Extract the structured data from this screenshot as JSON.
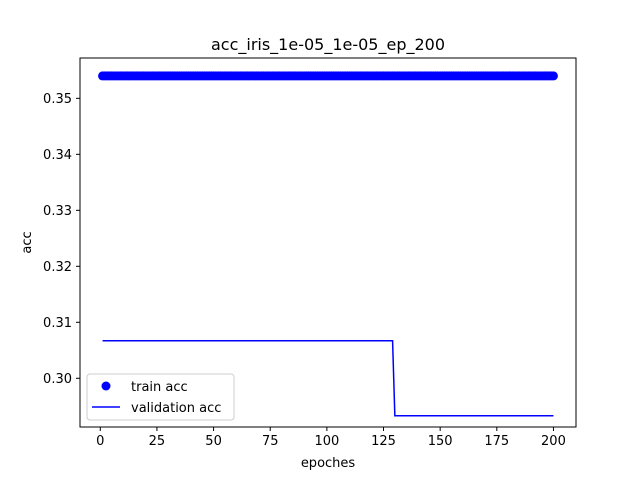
{
  "chart_data": {
    "type": "line",
    "title": "acc_iris_1e-05_1e-05_ep_200",
    "xlabel": "epoches",
    "ylabel": "acc",
    "xlim": [
      -8.95,
      209.95
    ],
    "ylim": [
      0.2913,
      0.3572
    ],
    "xticks": [
      0,
      25,
      50,
      75,
      100,
      125,
      150,
      175,
      200
    ],
    "yticks": [
      0.3,
      0.31,
      0.32,
      0.33,
      0.34,
      0.35
    ],
    "ytick_labels": [
      "0.30",
      "0.31",
      "0.32",
      "0.33",
      "0.34",
      "0.35"
    ],
    "grid": false,
    "legend_position": "lower-left",
    "series": [
      {
        "name": "train acc",
        "style": "markers",
        "color": "#0000ff",
        "x_range": [
          1,
          200
        ],
        "value": 0.354
      },
      {
        "name": "validation acc",
        "style": "line",
        "color": "#0000ff",
        "segments": [
          {
            "x_range": [
              1,
              129
            ],
            "value": 0.3067
          },
          {
            "x_range": [
              130,
              200
            ],
            "value": 0.2933
          }
        ]
      }
    ]
  }
}
